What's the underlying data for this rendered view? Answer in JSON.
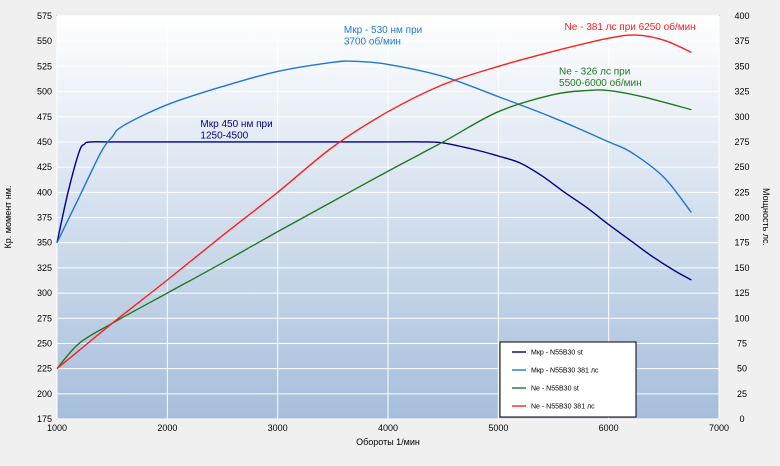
{
  "chart_data": {
    "type": "line",
    "xlabel": "Обороты 1/мин",
    "ylabel": "Кр. момент нм.",
    "y2label": "Мощность лс.",
    "xlim": [
      1000,
      7000
    ],
    "xticks": [
      1000,
      2000,
      3000,
      4000,
      5000,
      6000,
      7000
    ],
    "ylim": [
      175,
      575
    ],
    "yticks": [
      175,
      200,
      225,
      250,
      275,
      300,
      325,
      350,
      375,
      400,
      425,
      450,
      475,
      500,
      525,
      550,
      575
    ],
    "y2lim": [
      0,
      400
    ],
    "y2ticks": [
      0,
      25,
      50,
      75,
      100,
      125,
      150,
      175,
      200,
      225,
      250,
      275,
      300,
      325,
      350,
      375,
      400
    ],
    "grid": true,
    "legend_position": "bottom-right",
    "colors": {
      "background_top": "#ffffff",
      "background_bottom": "#a6bedc",
      "grid": "#ffffff"
    },
    "series": [
      {
        "name": "Мкр - N55B30 st",
        "axis": "left",
        "color": "#00008b",
        "x": [
          1000,
          1100,
          1200,
          1250,
          1300,
          1500,
          2000,
          3000,
          4000,
          4300,
          4500,
          4800,
          5000,
          5200,
          5400,
          5600,
          5800,
          6000,
          6200,
          6400,
          6600,
          6750
        ],
        "y": [
          350,
          400,
          440,
          448,
          450,
          450,
          450,
          450,
          450,
          450,
          449,
          442,
          436,
          429,
          416,
          400,
          385,
          368,
          352,
          336,
          322,
          313
        ]
      },
      {
        "name": "Мкр - N55B30 381 лс",
        "axis": "left",
        "color": "#1e78d2",
        "x": [
          1000,
          1200,
          1400,
          1500,
          1600,
          2000,
          2500,
          3000,
          3500,
          3700,
          4000,
          4500,
          5000,
          5500,
          6000,
          6200,
          6500,
          6750
        ],
        "y": [
          350,
          395,
          440,
          455,
          466,
          487,
          505,
          520,
          529,
          530,
          527,
          515,
          495,
          474,
          450,
          440,
          415,
          380
        ]
      },
      {
        "name": "Ne  - N55B30 st",
        "axis": "right",
        "color": "#1e7a1e",
        "x": [
          1000,
          1200,
          1500,
          2000,
          2500,
          3000,
          3500,
          4000,
          4500,
          5000,
          5500,
          5800,
          6000,
          6300,
          6750
        ],
        "y": [
          50,
          75,
          95,
          125,
          155,
          186,
          216,
          246,
          275,
          305,
          322,
          326,
          326,
          320,
          307
        ]
      },
      {
        "name": "Ne - N55B30 381 лс",
        "axis": "right",
        "color": "#ff1e1e",
        "x": [
          1000,
          1200,
          1500,
          2000,
          2500,
          3000,
          3500,
          4000,
          4500,
          5000,
          5500,
          6000,
          6250,
          6500,
          6750
        ],
        "y": [
          50,
          68,
          95,
          138,
          182,
          225,
          270,
          305,
          332,
          350,
          365,
          378,
          381,
          376,
          364
        ]
      }
    ],
    "annotations": [
      {
        "lines": [
          "Мкр - 530 нм при",
          "3700 об/мин"
        ],
        "color": "#1e78d2",
        "x": 3600,
        "y": 558,
        "axis": "left"
      },
      {
        "lines": [
          "Мкр 450 нм при",
          "1250-4500"
        ],
        "color": "#00008b",
        "x": 2300,
        "y": 465,
        "axis": "left"
      },
      {
        "lines": [
          "Ne - 381 лс при 6250 об/мин"
        ],
        "color": "#ff1e1e",
        "x": 5600,
        "y": 386,
        "axis": "right"
      },
      {
        "lines": [
          "Ne - 326 лс при",
          "5500-6000 об/мин"
        ],
        "color": "#1e7a1e",
        "x": 5550,
        "y": 342,
        "axis": "right"
      }
    ]
  }
}
